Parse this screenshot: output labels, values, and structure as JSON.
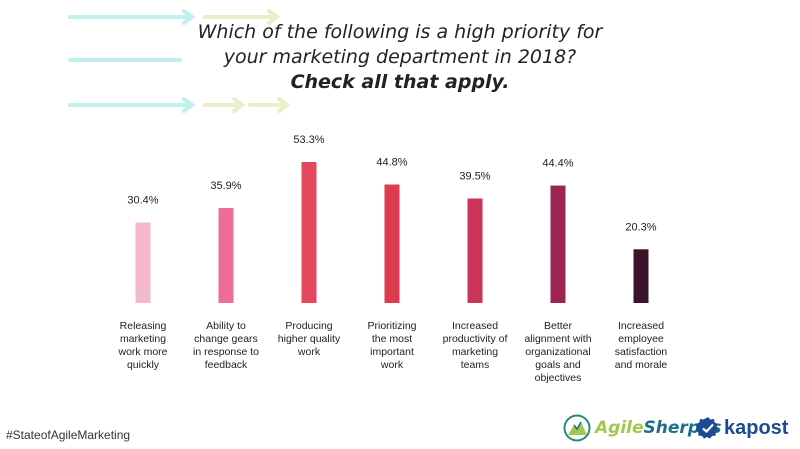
{
  "title_line1": "Which of the following is a high priority for",
  "title_line2": "your marketing department in 2018?",
  "title_line3": "Check all that apply.",
  "hashtag": "#StateofAgileMarketing",
  "logos": {
    "agilesherpas_a": "Agile",
    "agilesherpas_b": "Sherpas",
    "kapost": "kapost"
  },
  "colors": {
    "arrow_teal": "#bff0ec",
    "arrow_green": "#e7f0c9"
  },
  "chart_data": {
    "type": "bar",
    "title": "Which of the following is a high priority for your marketing department in 2018? Check all that apply.",
    "categories": [
      "Releasing marketing work more quickly",
      "Ability to change gears in response to feedback",
      "Producing higher quality work",
      "Prioritizing the most important work",
      "Increased productivity of marketing teams",
      "Better alignment with organizational goals and objectives",
      "Increased employee satisfaction and morale"
    ],
    "category_lines": [
      [
        "Releasing",
        "marketing",
        "work more",
        "quickly"
      ],
      [
        "Ability to",
        "change gears",
        "in response to",
        "feedback"
      ],
      [
        "Producing",
        "higher quality",
        "work"
      ],
      [
        "Prioritizing",
        "the most",
        "important",
        "work"
      ],
      [
        "Increased",
        "productivity of",
        "marketing",
        "teams"
      ],
      [
        "Better",
        "alignment with",
        "organizational",
        "goals and",
        "objectives"
      ],
      [
        "Increased",
        "employee",
        "satisfaction",
        "and morale"
      ]
    ],
    "values": [
      30.4,
      35.9,
      53.3,
      44.8,
      39.5,
      44.4,
      20.3
    ],
    "labels": [
      "30.4%",
      "35.9%",
      "53.3%",
      "44.8%",
      "39.5%",
      "44.4%",
      "20.3%"
    ],
    "colors": [
      "#f4b8cb",
      "#ec6d95",
      "#e5475f",
      "#dd3b50",
      "#c93457",
      "#9c2553",
      "#3a1428"
    ],
    "unit": "%",
    "ylim": [
      0,
      53.3
    ],
    "grid": false,
    "legend": "none"
  }
}
